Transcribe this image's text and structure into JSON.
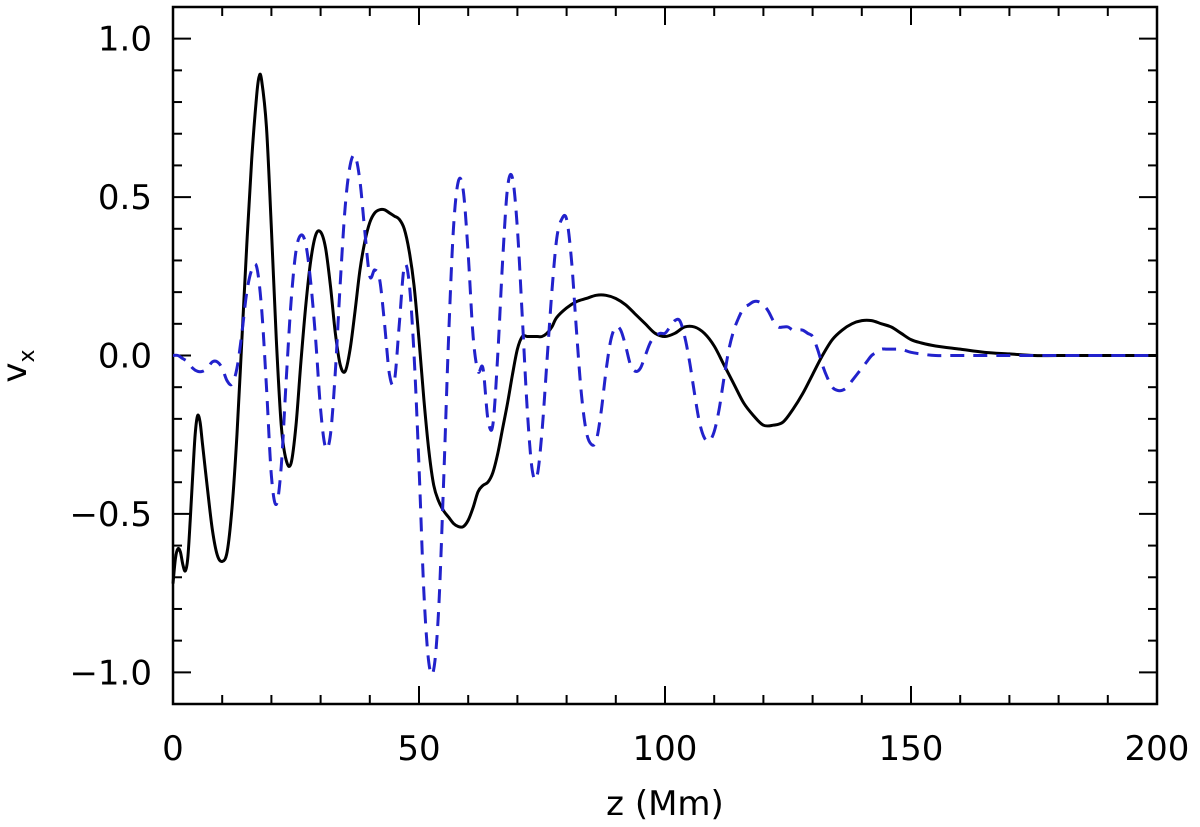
{
  "chart_data": {
    "type": "line",
    "xlabel": "z (Mm)",
    "ylabel": "v",
    "ylabel_subscript": "x",
    "xlim": [
      0,
      200
    ],
    "ylim": [
      -1.1,
      1.1
    ],
    "x_ticks": [
      0,
      50,
      100,
      150,
      200
    ],
    "x_tick_labels": [
      "0",
      "50",
      "100",
      "150",
      "200"
    ],
    "y_ticks": [
      -1.0,
      -0.5,
      0.0,
      0.5,
      1.0
    ],
    "y_tick_labels": [
      "−1.0",
      "−0.5",
      "0.0",
      "0.5",
      "1.0"
    ],
    "grid": false,
    "legend": "none",
    "series": [
      {
        "style": "solid",
        "color": "#000000",
        "points": [
          [
            0,
            -0.72
          ],
          [
            0.5,
            -0.64
          ],
          [
            1,
            -0.61
          ],
          [
            1.5,
            -0.62
          ],
          [
            2,
            -0.66
          ],
          [
            2.5,
            -0.68
          ],
          [
            3,
            -0.64
          ],
          [
            3.5,
            -0.52
          ],
          [
            4,
            -0.38
          ],
          [
            4.5,
            -0.25
          ],
          [
            5,
            -0.19
          ],
          [
            5.5,
            -0.21
          ],
          [
            6,
            -0.28
          ],
          [
            7,
            -0.42
          ],
          [
            8,
            -0.55
          ],
          [
            9,
            -0.63
          ],
          [
            10,
            -0.65
          ],
          [
            11,
            -0.62
          ],
          [
            12,
            -0.48
          ],
          [
            13,
            -0.25
          ],
          [
            14,
            0.05
          ],
          [
            15,
            0.35
          ],
          [
            16,
            0.62
          ],
          [
            17,
            0.82
          ],
          [
            17.5,
            0.88
          ],
          [
            18,
            0.87
          ],
          [
            19,
            0.72
          ],
          [
            20,
            0.4
          ],
          [
            21,
            0.05
          ],
          [
            22,
            -0.22
          ],
          [
            23,
            -0.33
          ],
          [
            24,
            -0.34
          ],
          [
            25,
            -0.22
          ],
          [
            26,
            -0.02
          ],
          [
            27,
            0.16
          ],
          [
            28,
            0.3
          ],
          [
            29,
            0.38
          ],
          [
            30,
            0.39
          ],
          [
            31,
            0.34
          ],
          [
            32,
            0.22
          ],
          [
            33,
            0.07
          ],
          [
            34,
            -0.03
          ],
          [
            35,
            -0.05
          ],
          [
            36,
            0.02
          ],
          [
            37,
            0.14
          ],
          [
            38,
            0.27
          ],
          [
            39,
            0.36
          ],
          [
            40,
            0.42
          ],
          [
            41,
            0.45
          ],
          [
            42,
            0.46
          ],
          [
            43,
            0.46
          ],
          [
            44,
            0.45
          ],
          [
            45,
            0.44
          ],
          [
            46,
            0.43
          ],
          [
            47,
            0.4
          ],
          [
            48,
            0.33
          ],
          [
            49,
            0.22
          ],
          [
            50,
            0.05
          ],
          [
            51,
            -0.14
          ],
          [
            52,
            -0.3
          ],
          [
            53,
            -0.41
          ],
          [
            54,
            -0.46
          ],
          [
            55,
            -0.49
          ],
          [
            56,
            -0.51
          ],
          [
            57,
            -0.53
          ],
          [
            58,
            -0.54
          ],
          [
            59,
            -0.54
          ],
          [
            60,
            -0.52
          ],
          [
            61,
            -0.48
          ],
          [
            62,
            -0.43
          ],
          [
            63,
            -0.41
          ],
          [
            64,
            -0.4
          ],
          [
            65,
            -0.37
          ],
          [
            66,
            -0.31
          ],
          [
            67,
            -0.23
          ],
          [
            68,
            -0.15
          ],
          [
            69,
            -0.06
          ],
          [
            70,
            0.02
          ],
          [
            71,
            0.06
          ],
          [
            72,
            0.06
          ],
          [
            73,
            0.06
          ],
          [
            74,
            0.06
          ],
          [
            75,
            0.06
          ],
          [
            76,
            0.07
          ],
          [
            77,
            0.09
          ],
          [
            78,
            0.12
          ],
          [
            80,
            0.15
          ],
          [
            82,
            0.17
          ],
          [
            84,
            0.18
          ],
          [
            86,
            0.19
          ],
          [
            88,
            0.19
          ],
          [
            90,
            0.18
          ],
          [
            92,
            0.16
          ],
          [
            94,
            0.13
          ],
          [
            96,
            0.1
          ],
          [
            98,
            0.07
          ],
          [
            100,
            0.06
          ],
          [
            102,
            0.07
          ],
          [
            104,
            0.09
          ],
          [
            106,
            0.09
          ],
          [
            108,
            0.07
          ],
          [
            110,
            0.03
          ],
          [
            112,
            -0.03
          ],
          [
            114,
            -0.09
          ],
          [
            116,
            -0.15
          ],
          [
            118,
            -0.19
          ],
          [
            120,
            -0.22
          ],
          [
            122,
            -0.22
          ],
          [
            124,
            -0.21
          ],
          [
            126,
            -0.17
          ],
          [
            128,
            -0.12
          ],
          [
            130,
            -0.06
          ],
          [
            132,
            0.0
          ],
          [
            134,
            0.05
          ],
          [
            136,
            0.08
          ],
          [
            138,
            0.1
          ],
          [
            140,
            0.11
          ],
          [
            142,
            0.11
          ],
          [
            144,
            0.1
          ],
          [
            146,
            0.09
          ],
          [
            148,
            0.07
          ],
          [
            150,
            0.05
          ],
          [
            152,
            0.04
          ],
          [
            155,
            0.03
          ],
          [
            160,
            0.02
          ],
          [
            165,
            0.01
          ],
          [
            170,
            0.005
          ],
          [
            175,
            0.0
          ],
          [
            180,
            0.0
          ],
          [
            190,
            0.0
          ],
          [
            200,
            0.0
          ]
        ]
      },
      {
        "style": "dashed",
        "color": "#2222cc",
        "points": [
          [
            0,
            0.0
          ],
          [
            1,
            0.0
          ],
          [
            2,
            -0.01
          ],
          [
            3,
            -0.02
          ],
          [
            4,
            -0.04
          ],
          [
            5,
            -0.05
          ],
          [
            6,
            -0.05
          ],
          [
            7,
            -0.04
          ],
          [
            8,
            -0.02
          ],
          [
            9,
            -0.02
          ],
          [
            10,
            -0.04
          ],
          [
            11,
            -0.08
          ],
          [
            12,
            -0.09
          ],
          [
            13,
            -0.04
          ],
          [
            14,
            0.07
          ],
          [
            15,
            0.2
          ],
          [
            16,
            0.27
          ],
          [
            17,
            0.28
          ],
          [
            18,
            0.15
          ],
          [
            19,
            -0.1
          ],
          [
            20,
            -0.38
          ],
          [
            21,
            -0.47
          ],
          [
            22,
            -0.35
          ],
          [
            23,
            -0.08
          ],
          [
            24,
            0.17
          ],
          [
            25,
            0.33
          ],
          [
            26,
            0.38
          ],
          [
            27,
            0.35
          ],
          [
            28,
            0.23
          ],
          [
            29,
            0.05
          ],
          [
            30,
            -0.17
          ],
          [
            31,
            -0.29
          ],
          [
            32,
            -0.25
          ],
          [
            33,
            -0.05
          ],
          [
            34,
            0.23
          ],
          [
            35,
            0.47
          ],
          [
            36,
            0.6
          ],
          [
            37,
            0.63
          ],
          [
            38,
            0.55
          ],
          [
            39,
            0.39
          ],
          [
            40,
            0.25
          ],
          [
            41,
            0.27
          ],
          [
            42,
            0.24
          ],
          [
            43,
            0.1
          ],
          [
            44,
            -0.06
          ],
          [
            45,
            -0.08
          ],
          [
            46,
            0.1
          ],
          [
            47,
            0.28
          ],
          [
            48,
            0.23
          ],
          [
            49,
            0.0
          ],
          [
            50,
            -0.35
          ],
          [
            51,
            -0.75
          ],
          [
            52,
            -0.97
          ],
          [
            53,
            -0.99
          ],
          [
            54,
            -0.8
          ],
          [
            55,
            -0.4
          ],
          [
            56,
            0.05
          ],
          [
            57,
            0.4
          ],
          [
            58,
            0.55
          ],
          [
            59,
            0.52
          ],
          [
            60,
            0.32
          ],
          [
            61,
            0.06
          ],
          [
            62,
            -0.05
          ],
          [
            63,
            -0.04
          ],
          [
            64,
            -0.2
          ],
          [
            65,
            -0.22
          ],
          [
            66,
            0.0
          ],
          [
            67,
            0.3
          ],
          [
            68,
            0.53
          ],
          [
            69,
            0.56
          ],
          [
            70,
            0.4
          ],
          [
            71,
            0.12
          ],
          [
            72,
            -0.17
          ],
          [
            73,
            -0.36
          ],
          [
            74,
            -0.38
          ],
          [
            75,
            -0.24
          ],
          [
            76,
            -0.02
          ],
          [
            77,
            0.2
          ],
          [
            78,
            0.37
          ],
          [
            79,
            0.43
          ],
          [
            80,
            0.43
          ],
          [
            81,
            0.3
          ],
          [
            82,
            0.08
          ],
          [
            83,
            -0.12
          ],
          [
            84,
            -0.24
          ],
          [
            85,
            -0.28
          ],
          [
            86,
            -0.27
          ],
          [
            87,
            -0.18
          ],
          [
            88,
            -0.05
          ],
          [
            89,
            0.05
          ],
          [
            90,
            0.09
          ],
          [
            91,
            0.08
          ],
          [
            92,
            0.03
          ],
          [
            93,
            -0.03
          ],
          [
            94,
            -0.05
          ],
          [
            95,
            -0.04
          ],
          [
            96,
            0.0
          ],
          [
            97,
            0.04
          ],
          [
            98,
            0.06
          ],
          [
            99,
            0.07
          ],
          [
            100,
            0.07
          ],
          [
            101,
            0.09
          ],
          [
            102,
            0.11
          ],
          [
            103,
            0.11
          ],
          [
            104,
            0.06
          ],
          [
            105,
            -0.02
          ],
          [
            106,
            -0.12
          ],
          [
            107,
            -0.21
          ],
          [
            108,
            -0.26
          ],
          [
            109,
            -0.27
          ],
          [
            110,
            -0.24
          ],
          [
            111,
            -0.17
          ],
          [
            112,
            -0.07
          ],
          [
            113,
            0.02
          ],
          [
            114,
            0.08
          ],
          [
            115,
            0.12
          ],
          [
            116,
            0.15
          ],
          [
            117,
            0.16
          ],
          [
            118,
            0.17
          ],
          [
            119,
            0.17
          ],
          [
            120,
            0.16
          ],
          [
            121,
            0.14
          ],
          [
            122,
            0.11
          ],
          [
            123,
            0.09
          ],
          [
            124,
            0.09
          ],
          [
            125,
            0.09
          ],
          [
            126,
            0.08
          ],
          [
            127,
            0.08
          ],
          [
            128,
            0.08
          ],
          [
            129,
            0.07
          ],
          [
            130,
            0.06
          ],
          [
            131,
            0.02
          ],
          [
            132,
            -0.03
          ],
          [
            133,
            -0.07
          ],
          [
            134,
            -0.1
          ],
          [
            135,
            -0.11
          ],
          [
            136,
            -0.11
          ],
          [
            137,
            -0.1
          ],
          [
            138,
            -0.08
          ],
          [
            139,
            -0.06
          ],
          [
            140,
            -0.04
          ],
          [
            141,
            -0.02
          ],
          [
            142,
            0.0
          ],
          [
            143,
            0.01
          ],
          [
            144,
            0.02
          ],
          [
            145,
            0.02
          ],
          [
            146,
            0.02
          ],
          [
            147,
            0.02
          ],
          [
            148,
            0.02
          ],
          [
            150,
            0.01
          ],
          [
            152,
            0.005
          ],
          [
            155,
            0.0
          ],
          [
            160,
            0.0
          ],
          [
            170,
            0.0
          ],
          [
            180,
            0.0
          ],
          [
            190,
            0.0
          ],
          [
            200,
            0.0
          ]
        ]
      }
    ]
  }
}
